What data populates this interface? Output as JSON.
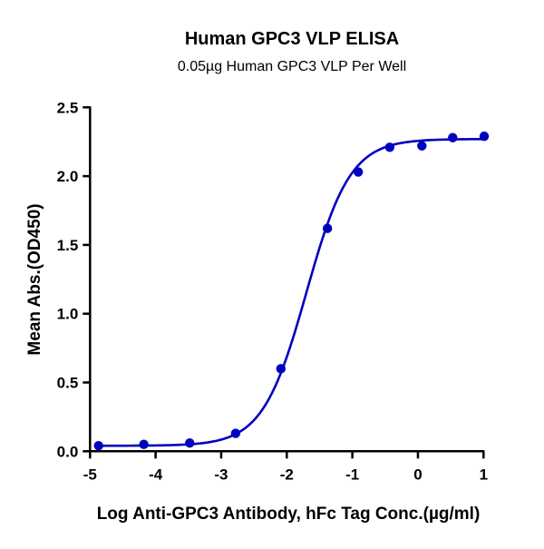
{
  "chart_data": {
    "type": "scatter",
    "title": "Human GPC3 VLP ELISA",
    "subtitle": "0.05µg Human GPC3 VLP Per Well",
    "xlabel": "Log Anti-GPC3 Antibody, hFc Tag Conc.(µg/ml)",
    "ylabel": "Mean Abs.(OD450)",
    "xlim": [
      -5,
      1
    ],
    "ylim": [
      0,
      2.5
    ],
    "xticks": [
      "-5",
      "-4",
      "-3",
      "-2",
      "-1",
      "0",
      "1"
    ],
    "yticks": [
      "0.0",
      "0.5",
      "1.0",
      "1.5",
      "2.0",
      "2.5"
    ],
    "grid": false,
    "fit_curve": "four-parameter logistic",
    "color": "#0000c0",
    "series": [
      {
        "x": [
          -4.87,
          -4.18,
          -3.48,
          -2.78,
          -2.09,
          -1.38,
          -0.91,
          -0.43,
          0.06,
          0.53,
          1.01
        ],
        "y": [
          0.04,
          0.05,
          0.06,
          0.13,
          0.6,
          1.62,
          2.03,
          2.21,
          2.22,
          2.28,
          2.29
        ]
      }
    ]
  }
}
